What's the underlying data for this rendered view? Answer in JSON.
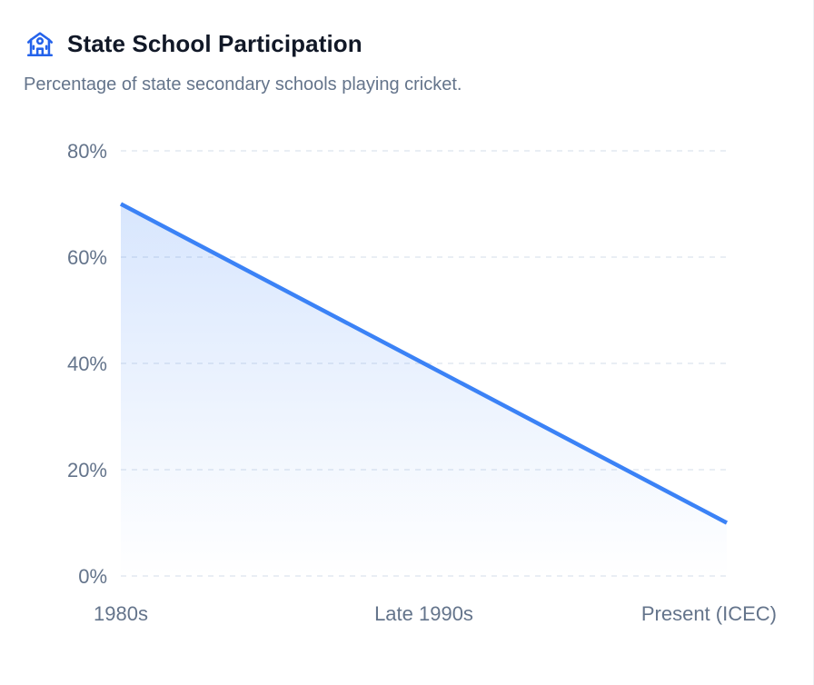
{
  "header": {
    "title": "State School Participation",
    "subtitle": "Percentage of state secondary schools playing cricket.",
    "icon": "school-icon"
  },
  "colors": {
    "accent": "#3b82f6",
    "grid": "#e2e8f0",
    "text_muted": "#64748b",
    "title": "#111827"
  },
  "chart_data": {
    "type": "area",
    "categories": [
      "1980s",
      "Late 1990s",
      "Present (ICEC)"
    ],
    "values": [
      70,
      40,
      10
    ],
    "y_ticks": [
      "0%",
      "20%",
      "40%",
      "60%",
      "80%"
    ],
    "ylim": [
      0,
      80
    ],
    "grid": true,
    "legend": "none"
  }
}
